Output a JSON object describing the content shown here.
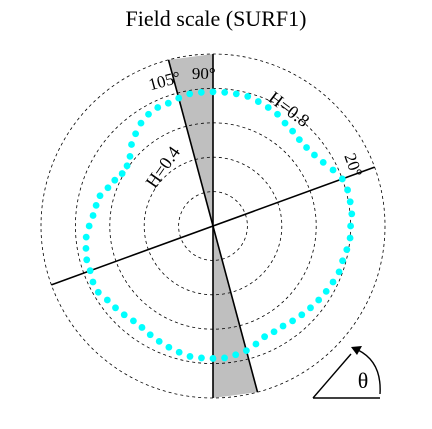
{
  "chart_data": {
    "type": "scatter",
    "coordinate_system": "polar",
    "title": "Field scale (SURF1)",
    "radial_range": [
      0,
      1
    ],
    "radial_circles": [
      0.2,
      0.4,
      0.6,
      0.8,
      1.0
    ],
    "radial_labels": [
      "H=0.4",
      "H=0.8"
    ],
    "angle_symbol": "θ",
    "reference_lines": [
      {
        "angle_deg": 20,
        "label": "20°"
      },
      {
        "angle_deg": 90,
        "label": "90°"
      },
      {
        "angle_deg": 105,
        "label": "105°"
      }
    ],
    "shaded_sector": {
      "from_deg": 90,
      "to_deg": 105
    },
    "colors": {
      "series": "#00ffff",
      "shade": "#bfbfbf",
      "grid": "#000000"
    },
    "series": [
      {
        "angles_deg": [
          0,
          5,
          10,
          15,
          20,
          25,
          30,
          35,
          40,
          45,
          50,
          55,
          60,
          65,
          70,
          75,
          80,
          85,
          90,
          95,
          100,
          105,
          110,
          115,
          120,
          125,
          130,
          135,
          140,
          145,
          150,
          155,
          160,
          165,
          170,
          175,
          180,
          185,
          190,
          195,
          200,
          205,
          210,
          215,
          220,
          225,
          230,
          235,
          240,
          245,
          250,
          255,
          260,
          265,
          270,
          275,
          280,
          285,
          290,
          295,
          300,
          305,
          310,
          315,
          320,
          325,
          330,
          335,
          340,
          345,
          350,
          355
        ],
        "radii": [
          0.8,
          0.81,
          0.81,
          0.81,
          0.8,
          0.77,
          0.74,
          0.72,
          0.71,
          0.71,
          0.72,
          0.73,
          0.75,
          0.76,
          0.77,
          0.78,
          0.78,
          0.78,
          0.78,
          0.78,
          0.78,
          0.77,
          0.76,
          0.76,
          0.75,
          0.73,
          0.7,
          0.67,
          0.63,
          0.61,
          0.61,
          0.63,
          0.65,
          0.68,
          0.69,
          0.7,
          0.72,
          0.74,
          0.75,
          0.76,
          0.76,
          0.77,
          0.77,
          0.75,
          0.74,
          0.73,
          0.72,
          0.72,
          0.73,
          0.74,
          0.75,
          0.76,
          0.77,
          0.77,
          0.77,
          0.77,
          0.76,
          0.75,
          0.73,
          0.71,
          0.71,
          0.71,
          0.72,
          0.73,
          0.74,
          0.75,
          0.76,
          0.77,
          0.78,
          0.78,
          0.79,
          0.8
        ]
      }
    ]
  }
}
